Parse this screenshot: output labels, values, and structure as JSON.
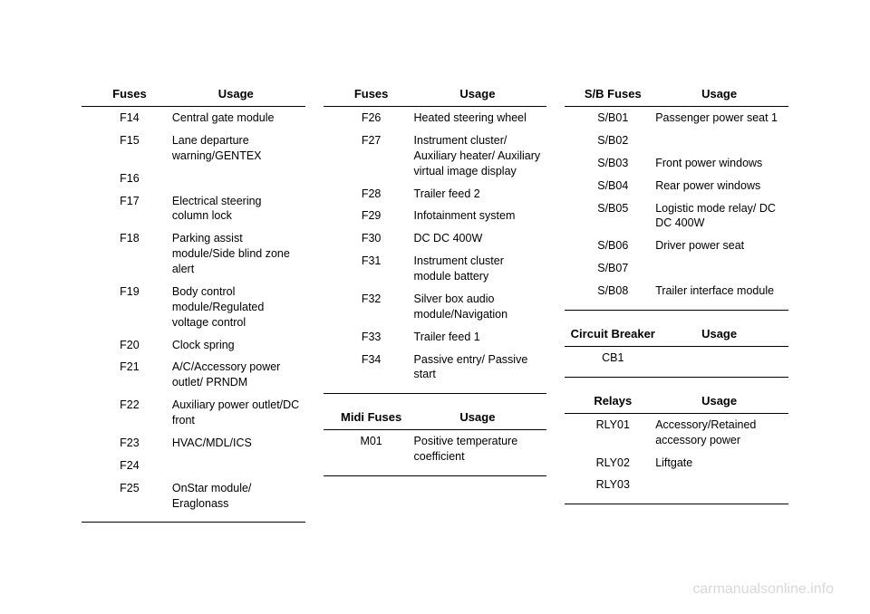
{
  "watermark": "carmanualsonline.info",
  "tables": {
    "fuses1": {
      "col1_header": "Fuses",
      "col2_header": "Usage",
      "rows": [
        {
          "c1": "F14",
          "c2": "Central gate module"
        },
        {
          "c1": "F15",
          "c2": "Lane departure warning/GENTEX"
        },
        {
          "c1": "F16",
          "c2": ""
        },
        {
          "c1": "F17",
          "c2": "Electrical steering column lock"
        },
        {
          "c1": "F18",
          "c2": "Parking assist module/Side blind zone alert"
        },
        {
          "c1": "F19",
          "c2": "Body control module/Regulated voltage control"
        },
        {
          "c1": "F20",
          "c2": "Clock spring"
        },
        {
          "c1": "F21",
          "c2": "A/C/Accessory power outlet/ PRNDM"
        },
        {
          "c1": "F22",
          "c2": "Auxiliary power outlet/DC front"
        },
        {
          "c1": "F23",
          "c2": "HVAC/MDL/ICS"
        },
        {
          "c1": "F24",
          "c2": ""
        },
        {
          "c1": "F25",
          "c2": "OnStar module/ Eraglonass"
        }
      ]
    },
    "fuses2": {
      "col1_header": "Fuses",
      "col2_header": "Usage",
      "rows": [
        {
          "c1": "F26",
          "c2": "Heated steering wheel"
        },
        {
          "c1": "F27",
          "c2": "Instrument cluster/ Auxiliary heater/ Auxiliary virtual image display"
        },
        {
          "c1": "F28",
          "c2": "Trailer feed 2"
        },
        {
          "c1": "F29",
          "c2": "Infotainment system"
        },
        {
          "c1": "F30",
          "c2": "DC DC 400W"
        },
        {
          "c1": "F31",
          "c2": "Instrument cluster module battery"
        },
        {
          "c1": "F32",
          "c2": "Silver box audio module/Navigation"
        },
        {
          "c1": "F33",
          "c2": "Trailer feed 1"
        },
        {
          "c1": "F34",
          "c2": "Passive entry/ Passive start"
        }
      ]
    },
    "midi": {
      "col1_header": "Midi Fuses",
      "col2_header": "Usage",
      "rows": [
        {
          "c1": "M01",
          "c2": "Positive temperature coefficient"
        }
      ]
    },
    "sbfuses": {
      "col1_header": "S/B Fuses",
      "col2_header": "Usage",
      "rows": [
        {
          "c1": "S/B01",
          "c2": "Passenger power seat 1"
        },
        {
          "c1": "S/B02",
          "c2": ""
        },
        {
          "c1": "S/B03",
          "c2": "Front power windows"
        },
        {
          "c1": "S/B04",
          "c2": "Rear power windows"
        },
        {
          "c1": "S/B05",
          "c2": "Logistic mode relay/ DC DC 400W"
        },
        {
          "c1": "S/B06",
          "c2": "Driver power seat"
        },
        {
          "c1": "S/B07",
          "c2": ""
        },
        {
          "c1": "S/B08",
          "c2": "Trailer interface module"
        }
      ]
    },
    "cb": {
      "col1_header": "Circuit Breaker",
      "col2_header": "Usage",
      "rows": [
        {
          "c1": "CB1",
          "c2": ""
        }
      ]
    },
    "relays": {
      "col1_header": "Relays",
      "col2_header": "Usage",
      "rows": [
        {
          "c1": "RLY01",
          "c2": "Accessory/Retained accessory power"
        },
        {
          "c1": "RLY02",
          "c2": "Liftgate"
        },
        {
          "c1": "RLY03",
          "c2": ""
        }
      ]
    }
  }
}
